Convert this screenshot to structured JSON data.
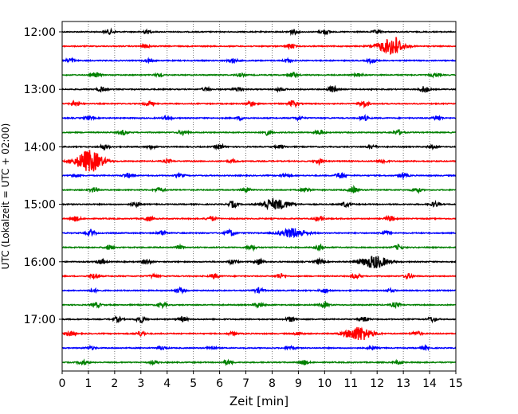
{
  "chart_data": {
    "type": "line",
    "title": "",
    "xlabel": "Zeit  [min]",
    "ylabel": "UTC (Lokalzeit = UTC + 02:00)",
    "xlim": [
      0,
      15
    ],
    "x_ticks": [
      "0",
      "1",
      "2",
      "3",
      "4",
      "5",
      "6",
      "7",
      "8",
      "9",
      "10",
      "11",
      "12",
      "13",
      "14",
      "15"
    ],
    "y_ticks": [
      "12:00",
      "13:00",
      "14:00",
      "15:00",
      "16:00",
      "17:00"
    ],
    "trace_colors": [
      "#000000",
      "#ff0000",
      "#0000ff",
      "#008000"
    ],
    "grid": "vertical-dotted",
    "trace_minutes_per_line": 15,
    "series": [
      {
        "start": "12:00",
        "bursts": [
          [
            1.8,
            3
          ],
          [
            3.2,
            2
          ],
          [
            8.8,
            3
          ],
          [
            10.0,
            3
          ],
          [
            12.0,
            2
          ]
        ]
      },
      {
        "start": "12:15",
        "bursts": [
          [
            3.2,
            2
          ],
          [
            8.7,
            3
          ],
          [
            12.5,
            9
          ],
          [
            12.7,
            5
          ]
        ]
      },
      {
        "start": "12:30",
        "bursts": [
          [
            0.3,
            3
          ],
          [
            3.3,
            2
          ],
          [
            6.5,
            3
          ],
          [
            8.6,
            2
          ],
          [
            11.8,
            3
          ]
        ]
      },
      {
        "start": "12:45",
        "bursts": [
          [
            1.3,
            3
          ],
          [
            3.7,
            2
          ],
          [
            6.8,
            2
          ],
          [
            8.8,
            3
          ],
          [
            11.3,
            2
          ],
          [
            14.2,
            2
          ]
        ]
      },
      {
        "start": "13:00",
        "bursts": [
          [
            1.5,
            3
          ],
          [
            5.5,
            2
          ],
          [
            6.7,
            3
          ],
          [
            8.3,
            2
          ],
          [
            10.3,
            4
          ],
          [
            13.8,
            4
          ]
        ]
      },
      {
        "start": "13:15",
        "bursts": [
          [
            0.5,
            3
          ],
          [
            3.3,
            3
          ],
          [
            7.2,
            3
          ],
          [
            8.8,
            4
          ],
          [
            11.5,
            4
          ]
        ]
      },
      {
        "start": "13:30",
        "bursts": [
          [
            1.0,
            2
          ],
          [
            4.0,
            2
          ],
          [
            6.8,
            2
          ],
          [
            9.0,
            2
          ],
          [
            11.5,
            3
          ],
          [
            14.3,
            3
          ]
        ]
      },
      {
        "start": "13:45",
        "bursts": [
          [
            2.3,
            3
          ],
          [
            4.6,
            3
          ],
          [
            7.8,
            3
          ],
          [
            9.8,
            3
          ],
          [
            12.8,
            3
          ]
        ]
      },
      {
        "start": "14:00",
        "bursts": [
          [
            1.6,
            3
          ],
          [
            3.4,
            2
          ],
          [
            6.0,
            3
          ],
          [
            8.3,
            2
          ],
          [
            11.8,
            2
          ],
          [
            14.1,
            2
          ]
        ]
      },
      {
        "start": "14:15",
        "bursts": [
          [
            1.0,
            8
          ],
          [
            1.1,
            6
          ],
          [
            4.0,
            2
          ],
          [
            6.5,
            2
          ],
          [
            9.8,
            3
          ],
          [
            12.2,
            3
          ]
        ]
      },
      {
        "start": "14:30",
        "bursts": [
          [
            0.5,
            2
          ],
          [
            2.5,
            3
          ],
          [
            4.5,
            2
          ],
          [
            8.5,
            2
          ],
          [
            10.6,
            4
          ],
          [
            13.0,
            3
          ]
        ]
      },
      {
        "start": "14:45",
        "bursts": [
          [
            1.2,
            3
          ],
          [
            3.7,
            3
          ],
          [
            7.0,
            3
          ],
          [
            9.3,
            3
          ],
          [
            11.1,
            4
          ],
          [
            13.5,
            3
          ]
        ]
      },
      {
        "start": "15:00",
        "bursts": [
          [
            2.8,
            3
          ],
          [
            6.5,
            4
          ],
          [
            7.8,
            3
          ],
          [
            8.2,
            6
          ],
          [
            10.8,
            3
          ],
          [
            14.2,
            3
          ]
        ]
      },
      {
        "start": "15:15",
        "bursts": [
          [
            0.5,
            3
          ],
          [
            3.3,
            3
          ],
          [
            5.7,
            3
          ],
          [
            9.8,
            3
          ],
          [
            12.5,
            3
          ]
        ]
      },
      {
        "start": "15:30",
        "bursts": [
          [
            1.1,
            3
          ],
          [
            3.8,
            3
          ],
          [
            6.4,
            4
          ],
          [
            8.8,
            6
          ],
          [
            12.3,
            3
          ]
        ]
      },
      {
        "start": "15:45",
        "bursts": [
          [
            1.8,
            3
          ],
          [
            4.5,
            2
          ],
          [
            7.2,
            3
          ],
          [
            9.8,
            3
          ],
          [
            12.8,
            3
          ]
        ]
      },
      {
        "start": "16:00",
        "bursts": [
          [
            1.5,
            3
          ],
          [
            3.2,
            3
          ],
          [
            6.5,
            3
          ],
          [
            7.5,
            4
          ],
          [
            9.8,
            3
          ],
          [
            11.9,
            8
          ]
        ]
      },
      {
        "start": "16:15",
        "bursts": [
          [
            1.2,
            3
          ],
          [
            3.5,
            2
          ],
          [
            5.8,
            3
          ],
          [
            8.3,
            3
          ],
          [
            11.2,
            3
          ],
          [
            13.2,
            3
          ]
        ]
      },
      {
        "start": "16:30",
        "bursts": [
          [
            1.2,
            2
          ],
          [
            4.5,
            3
          ],
          [
            7.5,
            3
          ],
          [
            10.0,
            3
          ],
          [
            12.5,
            2
          ]
        ]
      },
      {
        "start": "16:45",
        "bursts": [
          [
            1.3,
            3
          ],
          [
            3.8,
            3
          ],
          [
            7.5,
            3
          ],
          [
            10.0,
            3
          ],
          [
            12.7,
            3
          ]
        ]
      },
      {
        "start": "17:00",
        "bursts": [
          [
            2.1,
            3
          ],
          [
            3.0,
            4
          ],
          [
            4.6,
            3
          ],
          [
            8.7,
            3
          ],
          [
            11.5,
            3
          ],
          [
            14.1,
            3
          ]
        ]
      },
      {
        "start": "17:15",
        "bursts": [
          [
            0.3,
            3
          ],
          [
            3.0,
            3
          ],
          [
            6.5,
            2
          ],
          [
            9.0,
            2
          ],
          [
            11.3,
            9
          ],
          [
            13.5,
            3
          ]
        ]
      },
      {
        "start": "17:30",
        "bursts": [
          [
            1.1,
            2
          ],
          [
            3.8,
            2
          ],
          [
            5.7,
            2
          ],
          [
            8.7,
            2
          ],
          [
            11.8,
            2
          ],
          [
            13.8,
            2
          ]
        ]
      },
      {
        "start": "17:45",
        "bursts": [
          [
            0.8,
            3
          ],
          [
            3.5,
            2
          ],
          [
            6.3,
            3
          ],
          [
            9.2,
            3
          ],
          [
            12.8,
            2
          ]
        ]
      }
    ]
  }
}
